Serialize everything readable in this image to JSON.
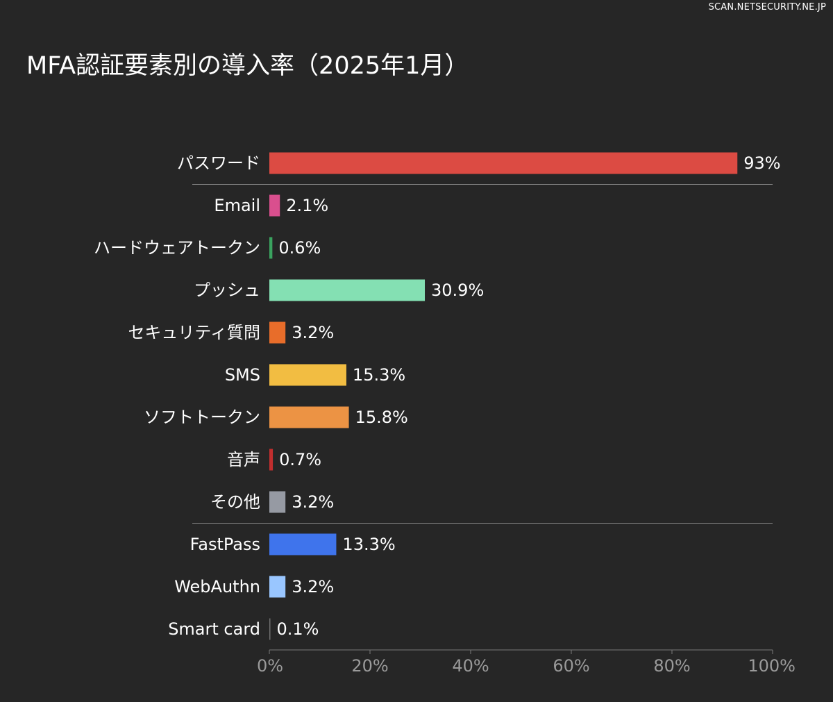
{
  "watermark": "SCAN.NETSECURITY.NE.JP",
  "chart_data": {
    "type": "bar",
    "orientation": "horizontal",
    "title": "MFA認証要素別の導入率（2025年1月）",
    "xlabel": "",
    "ylabel": "",
    "xlim": [
      0,
      100
    ],
    "ticks": [
      "0%",
      "20%",
      "40%",
      "60%",
      "80%",
      "100%"
    ],
    "grid": false,
    "legend": "none",
    "categories": [
      "パスワード",
      "Email",
      "ハードウェアトークン",
      "プッシュ",
      "セキュリティ質問",
      "SMS",
      "ソフトトークン",
      "音声",
      "その他",
      "FastPass",
      "WebAuthn",
      "Smart card"
    ],
    "values": [
      93,
      2.1,
      0.6,
      30.9,
      3.2,
      15.3,
      15.8,
      0.7,
      3.2,
      13.3,
      3.2,
      0.1
    ],
    "value_labels": [
      "93%",
      "2.1%",
      "0.6%",
      "30.9%",
      "3.2%",
      "15.3%",
      "15.8%",
      "0.7%",
      "3.2%",
      "13.3%",
      "3.2%",
      "0.1%"
    ],
    "colors": [
      "#dc4b43",
      "#d94f8e",
      "#3aa35f",
      "#84e0b3",
      "#e86d2a",
      "#f2bd42",
      "#ec9344",
      "#c22e2e",
      "#969aa3",
      "#3f74ec",
      "#99c6ff",
      "#6f6f6f"
    ],
    "separators_after": [
      0,
      8
    ]
  }
}
